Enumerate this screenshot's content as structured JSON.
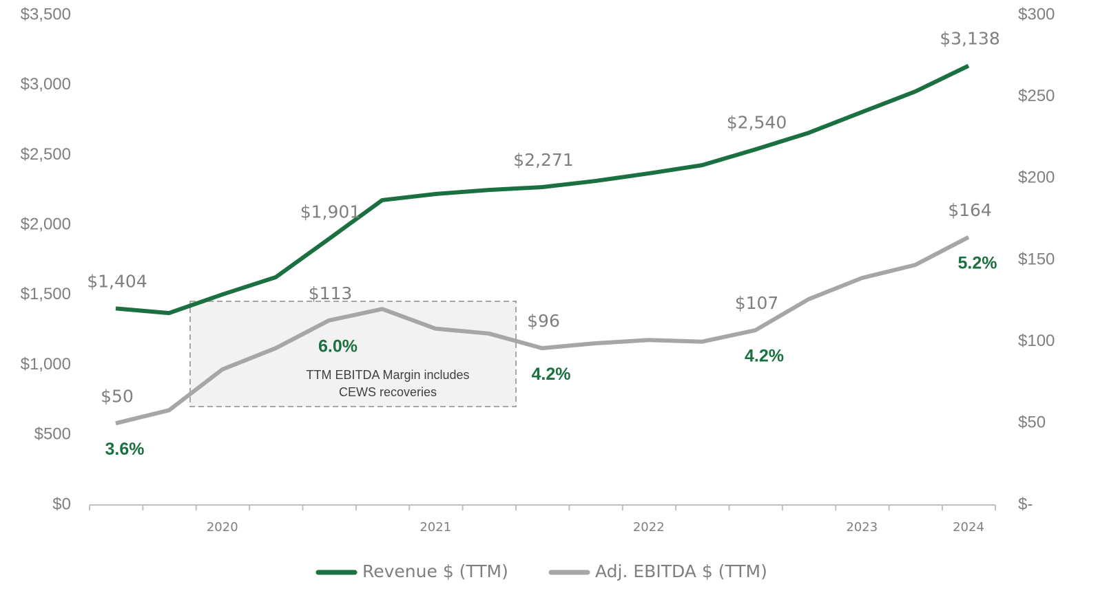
{
  "chart_data": {
    "type": "line",
    "categories": [
      null,
      null,
      "2020",
      null,
      null,
      null,
      "2021",
      null,
      null,
      null,
      "2022",
      null,
      null,
      null,
      "2023",
      null,
      "2024"
    ],
    "series": [
      {
        "name": "Revenue $ (TTM)",
        "color": "#1a7040",
        "axis": "y",
        "values": [
          1404,
          1371,
          1504,
          1627,
          1901,
          2178,
          2222,
          2251,
          2271,
          2315,
          2369,
          2428,
          2540,
          2659,
          2807,
          2954,
          3138
        ],
        "value_labels": [
          "$1,404",
          null,
          null,
          null,
          "$1,901",
          null,
          null,
          null,
          "$2,271",
          null,
          null,
          null,
          "$2,540",
          null,
          null,
          null,
          "$3,138"
        ]
      },
      {
        "name": "Adj. EBITDA $ (TTM)",
        "color": "#a6a6a6",
        "axis": "y2",
        "values": [
          50,
          58,
          83,
          96,
          113,
          120,
          108,
          105,
          96,
          99,
          101,
          100,
          107,
          126,
          139,
          147,
          164
        ],
        "value_labels": [
          "$50",
          null,
          null,
          null,
          "$113",
          null,
          null,
          null,
          "$96",
          null,
          null,
          null,
          "$107",
          null,
          null,
          null,
          "$164"
        ]
      }
    ],
    "margin_labels": [
      "3.6%",
      null,
      null,
      null,
      "6.0%",
      null,
      null,
      null,
      "4.2%",
      null,
      null,
      null,
      "4.2%",
      null,
      null,
      null,
      "5.2%"
    ],
    "annotation": [
      "TTM EBITDA Margin includes",
      "CEWS recoveries"
    ],
    "ylim": [
      0,
      3500
    ],
    "yticks": [
      {
        "value": 0,
        "label": "$0"
      },
      {
        "value": 500,
        "label": "$500"
      },
      {
        "value": 1000,
        "label": "$1,000"
      },
      {
        "value": 1500,
        "label": "$1,500"
      },
      {
        "value": 2000,
        "label": "$2,000"
      },
      {
        "value": 2500,
        "label": "$2,500"
      },
      {
        "value": 3000,
        "label": "$3,000"
      },
      {
        "value": 3500,
        "label": "$3,500"
      }
    ],
    "y2lim": [
      0,
      300
    ],
    "y2ticks": [
      {
        "value": 0,
        "label": "$-"
      },
      {
        "value": 50,
        "label": "$50"
      },
      {
        "value": 100,
        "label": "$100"
      },
      {
        "value": 150,
        "label": "$150"
      },
      {
        "value": 200,
        "label": "$200"
      },
      {
        "value": 250,
        "label": "$250"
      },
      {
        "value": 300,
        "label": "$300"
      }
    ],
    "legend": "bottom",
    "grid": false
  }
}
